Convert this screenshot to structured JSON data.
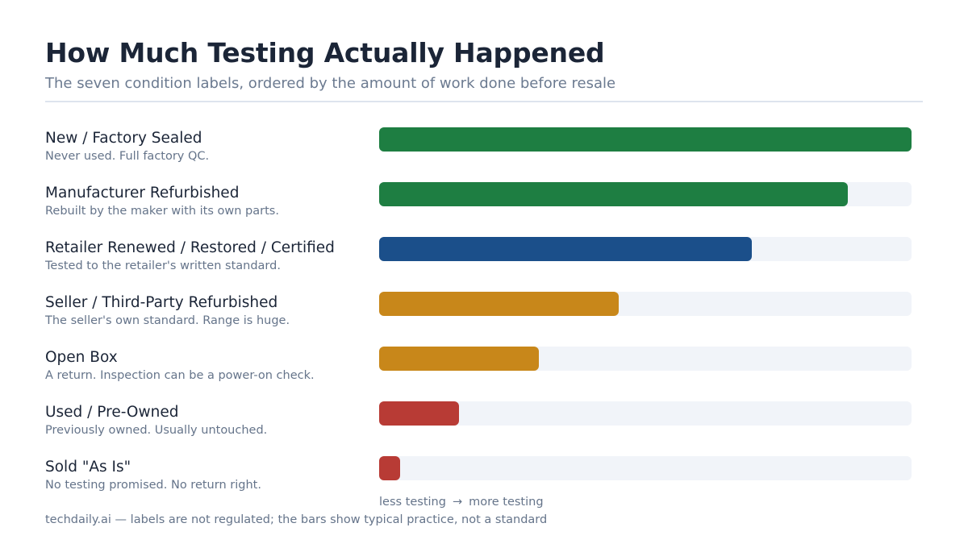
{
  "header": {
    "title": "How Much Testing Actually Happened",
    "subtitle": "The seven condition labels, ordered by the amount of work done before resale"
  },
  "chart_data": {
    "type": "bar",
    "orientation": "horizontal",
    "title": "How Much Testing Actually Happened",
    "subtitle": "The seven condition labels, ordered by the amount of work done before resale",
    "xlim": [
      0,
      100
    ],
    "value_unit": "relative testing level (0-100)",
    "categories": [
      "New / Factory Sealed",
      "Manufacturer Refurbished",
      "Retailer Renewed / Restored / Certified",
      "Seller / Third-Party Refurbished",
      "Open Box",
      "Used / Pre-Owned",
      "Sold \"As Is\""
    ],
    "descriptions": [
      "Never used. Full factory QC.",
      "Rebuilt by the maker with its own parts.",
      "Tested to the retailer's written standard.",
      "The seller's own standard. Range is huge.",
      "A return. Inspection can be a power-on check.",
      "Previously owned. Usually untouched.",
      "No testing promised. No return right."
    ],
    "values": [
      100,
      88,
      70,
      45,
      30,
      15,
      4
    ],
    "colors": [
      "#1e7e42",
      "#1e7e42",
      "#1b4f8a",
      "#c8871a",
      "#c8871a",
      "#b83b35",
      "#b83b35"
    ],
    "track_color": "#f1f4f9",
    "axis_note": {
      "left": "less testing",
      "arrow": "→",
      "right": "more testing"
    },
    "grid": false,
    "legend": "none"
  },
  "footer": {
    "source": "techdaily.ai — labels are not regulated; the bars show typical practice, not a standard"
  }
}
